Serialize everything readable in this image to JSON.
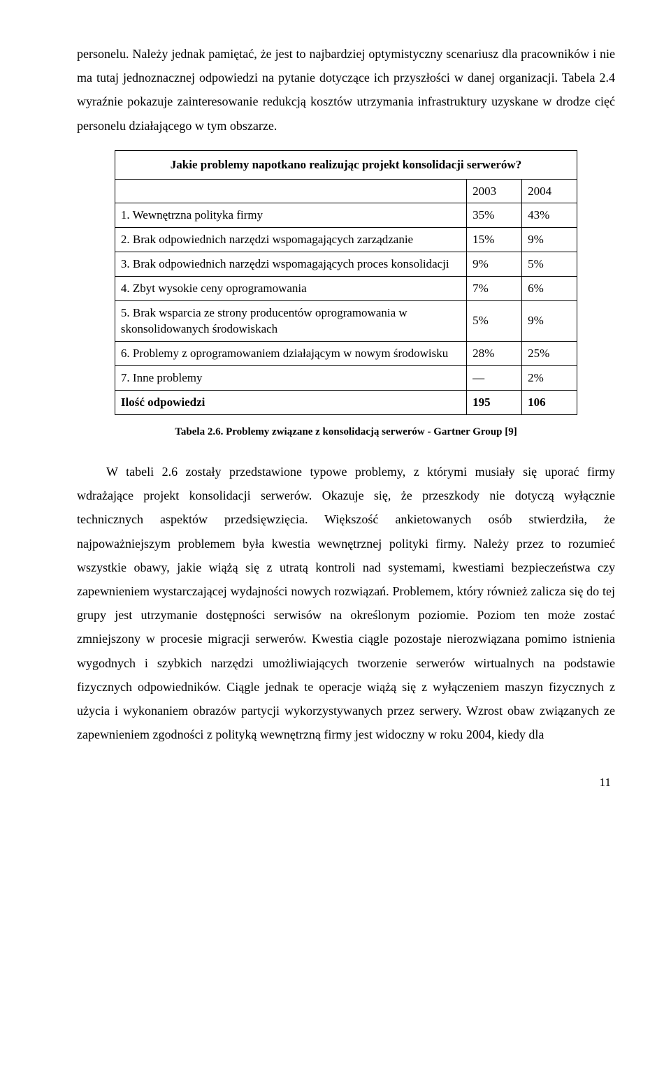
{
  "para1": "personelu. Należy jednak pamiętać, że jest to najbardziej optymistyczny scenariusz dla pracowników i nie ma tutaj jednoznacznej odpowiedzi na pytanie dotyczące ich przyszłości w danej organizacji. Tabela 2.4 wyraźnie pokazuje zainteresowanie redukcją kosztów utrzymania infrastruktury uzyskane w drodze cięć personelu działającego w tym obszarze.",
  "table": {
    "title": "Jakie problemy napotkano realizując projekt konsolidacji serwerów?",
    "years": [
      "2003",
      "2004"
    ],
    "rows": [
      {
        "label": "1. Wewnętrzna polityka firmy",
        "v1": "35%",
        "v2": "43%"
      },
      {
        "label": "2. Brak odpowiednich narzędzi wspomagających zarządzanie",
        "v1": "15%",
        "v2": "9%"
      },
      {
        "label": "3. Brak odpowiednich narzędzi wspomagających proces konsolidacji",
        "v1": "9%",
        "v2": "5%"
      },
      {
        "label": "4. Zbyt wysokie ceny oprogramowania",
        "v1": "7%",
        "v2": "6%"
      },
      {
        "label": "5. Brak wsparcia ze strony producentów oprogramowania w skonsolidowanych środowiskach",
        "v1": "5%",
        "v2": "9%"
      },
      {
        "label": "6. Problemy z oprogramowaniem działającym w nowym środowisku",
        "v1": "28%",
        "v2": "25%"
      },
      {
        "label": "7. Inne problemy",
        "v1": "—",
        "v2": "2%"
      }
    ],
    "footer": {
      "label": "Ilość odpowiedzi",
      "v1": "195",
      "v2": "106"
    },
    "caption": "Tabela 2.6. Problemy związane z konsolidacją serwerów - Gartner Group [9]"
  },
  "para2": "W tabeli 2.6 zostały przedstawione typowe problemy, z którymi musiały się uporać firmy wdrażające projekt konsolidacji serwerów. Okazuje się, że przeszkody nie dotyczą wyłącznie technicznych aspektów przedsięwzięcia. Większość ankietowanych osób stwierdziła, że najpoważniejszym problemem była kwestia wewnętrznej polityki firmy. Należy przez to rozumieć wszystkie obawy, jakie wiążą się z utratą kontroli nad systemami, kwestiami bezpieczeństwa czy zapewnieniem wystarczającej wydajności nowych rozwiązań. Problemem, który również zalicza się do tej grupy jest utrzymanie dostępności serwisów na określonym poziomie. Poziom ten może zostać zmniejszony w procesie migracji serwerów. Kwestia ciągle pozostaje nierozwiązana pomimo istnienia wygodnych i szybkich narzędzi umożliwiających tworzenie serwerów wirtualnych na podstawie fizycznych odpowiedników. Ciągle jednak te operacje wiążą się z wyłączeniem maszyn fizycznych z użycia i wykonaniem obrazów partycji wykorzystywanych przez serwery. Wzrost obaw związanych ze zapewnieniem zgodności z polityką wewnętrzną firmy jest widoczny w roku 2004, kiedy dla",
  "page_number": "11"
}
